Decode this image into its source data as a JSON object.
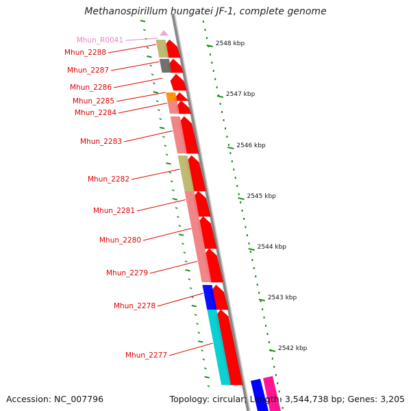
{
  "title": "Methanospirillum hungatei JF-1, complete genome",
  "footer": {
    "accession": "Accession: NC_007796",
    "summary": "Topology: circular; Length: 3,544,738 bp; Genes: 3,205"
  },
  "colors": {
    "label_red": "#e00000",
    "label_pink": "#ee82c8",
    "arrow_red": "#ff0000",
    "backbone_gray": "#888888",
    "tick_green": "#1c8c1c",
    "salmon": "#f08080",
    "khaki": "#bdb76b",
    "dim_gray": "#696969",
    "orange": "#ff8c00",
    "blue": "#0000ff",
    "cyan": "#00ced1",
    "magenta": "#ff1493"
  },
  "kbp_ticks": [
    "2548 kbp",
    "2547 kbp",
    "2546 kbp",
    "2545 kbp",
    "2544 kbp",
    "2543 kbp",
    "2542 kbp"
  ],
  "genes": [
    {
      "label": "Mhun_R0041",
      "label_color": "pink",
      "block_color": null,
      "arrow_color": "magenta"
    },
    {
      "label": "Mhun_2288",
      "label_color": "red",
      "block_color": "khaki",
      "arrow_color": "red"
    },
    {
      "label": "Mhun_2287",
      "label_color": "red",
      "block_color": "dim_gray",
      "arrow_color": "red"
    },
    {
      "label": "Mhun_2286",
      "label_color": "red",
      "block_color": null,
      "arrow_color": "red"
    },
    {
      "label": "Mhun_2285",
      "label_color": "red",
      "block_color": "orange",
      "arrow_color": "red"
    },
    {
      "label": "Mhun_2284",
      "label_color": "red",
      "block_color": "salmon",
      "arrow_color": "red"
    },
    {
      "label": "Mhun_2283",
      "label_color": "red",
      "block_color": "salmon",
      "arrow_color": "red"
    },
    {
      "label": "Mhun_2282",
      "label_color": "red",
      "block_color": "khaki",
      "arrow_color": "red"
    },
    {
      "label": "Mhun_2281",
      "label_color": "red",
      "block_color": "salmon",
      "arrow_color": "red"
    },
    {
      "label": "Mhun_2280",
      "label_color": "red",
      "block_color": "salmon",
      "arrow_color": "red"
    },
    {
      "label": "Mhun_2279",
      "label_color": "red",
      "block_color": "salmon",
      "arrow_color": "red"
    },
    {
      "label": "Mhun_2278",
      "label_color": "red",
      "block_color": "blue",
      "arrow_color": "red"
    },
    {
      "label": "Mhun_2277",
      "label_color": "red",
      "block_color": "cyan",
      "arrow_color": "red"
    }
  ]
}
